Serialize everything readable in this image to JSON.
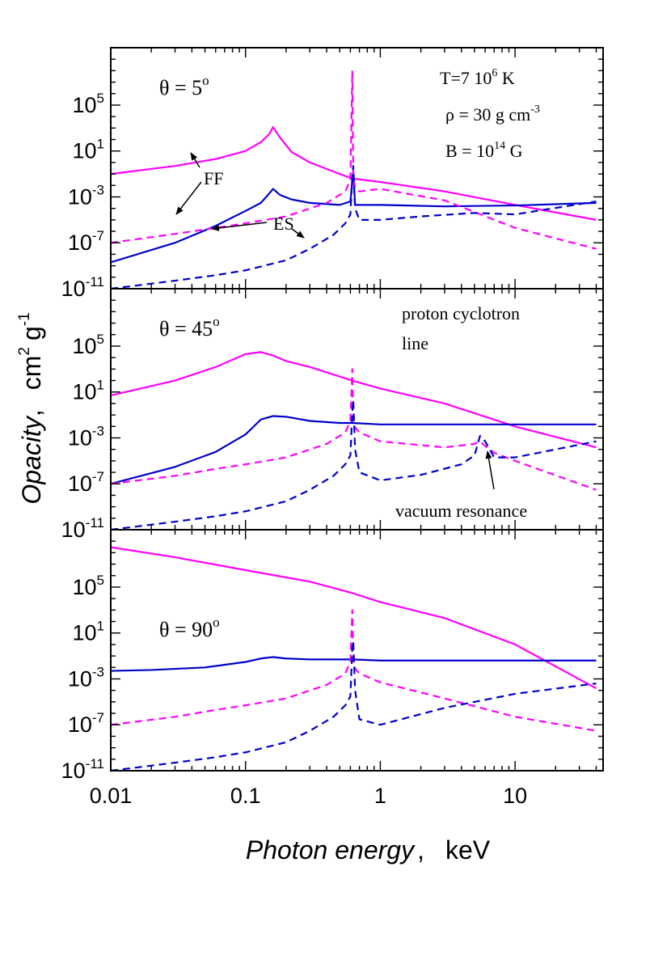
{
  "figure": {
    "y_axis": {
      "italic": "Opacity",
      "sep": ",",
      "unit_cm": "cm",
      "unit_cm_exp": "2",
      "unit_g": "g",
      "unit_g_exp": "-1"
    },
    "x_axis": {
      "italic": "Photon energy",
      "sep": ",",
      "unit": "keV"
    },
    "x_tick_labels": [
      "0.01",
      "0.1",
      "1",
      "10"
    ],
    "y_tick_base": "10",
    "y_tick_exponents": [
      "5",
      "1",
      "-3",
      "-7",
      "-11"
    ],
    "params": {
      "T_pre": "T=7 10",
      "T_exp": "6",
      "T_post": " K",
      "rho_pre": "ρ = 30 g cm",
      "rho_exp": "-3",
      "B_pre": "B = 10",
      "B_exp": "14",
      "B_post": " G"
    },
    "labels": {
      "ff": "FF",
      "es": "ES",
      "cyclotron_1": "proton cyclotron",
      "cyclotron_2": "line",
      "vacuum": "vacuum resonance"
    },
    "colors": {
      "magenta": "#ff00ff",
      "blue": "#0000cc"
    }
  },
  "chart_data": [
    {
      "type": "line",
      "panel": "top",
      "theta_text": "θ = 5",
      "theta_sup": "o",
      "x_scale": "log",
      "y_scale": "log",
      "xlim": [
        0.01,
        45
      ],
      "ylim": [
        1e-11,
        10000000000.0
      ],
      "xlabel": "Photon energy, keV",
      "ylabel": "Opacity, cm2 g-1",
      "series": [
        {
          "name": "magenta solid",
          "color": "magenta",
          "dash": false,
          "x": [
            0.01,
            0.03,
            0.06,
            0.1,
            0.13,
            0.15,
            0.16,
            0.18,
            0.22,
            0.3,
            0.5,
            0.62,
            1,
            3,
            10,
            40
          ],
          "y": [
            0.1,
            0.5,
            2,
            10,
            60,
            300,
            1200,
            150,
            8,
            1,
            0.1,
            0.04,
            0.02,
            0.003,
            0.0002,
            1e-05
          ]
        },
        {
          "name": "blue solid",
          "color": "blue",
          "dash": false,
          "x": [
            0.01,
            0.03,
            0.06,
            0.1,
            0.13,
            0.15,
            0.16,
            0.18,
            0.22,
            0.3,
            0.5,
            0.6,
            0.62,
            0.63,
            0.65,
            0.7,
            1,
            3,
            10,
            40
          ],
          "y": [
            2e-09,
            1e-07,
            3e-06,
            6e-05,
            0.0003,
            0.002,
            0.005,
            0.0015,
            0.0006,
            0.0003,
            0.0002,
            0.0004,
            0.03,
            0.2,
            0.0002,
            0.0002,
            0.0002,
            0.00015,
            0.00018,
            0.0003
          ]
        },
        {
          "name": "magenta dashed",
          "color": "magenta",
          "dash": true,
          "x": [
            0.01,
            0.03,
            0.06,
            0.1,
            0.2,
            0.4,
            0.55,
            0.6,
            0.62,
            0.63,
            0.65,
            0.7,
            1,
            3,
            10,
            40
          ],
          "y": [
            1e-07,
            6e-07,
            2e-06,
            5e-06,
            2e-05,
            0.0003,
            0.003,
            0.03,
            100000000.0,
            0.05,
            0.008,
            0.003,
            0.005,
            0.0005,
            2e-06,
            3e-08
          ]
        },
        {
          "name": "blue dashed",
          "color": "blue",
          "dash": true,
          "x": [
            0.01,
            0.03,
            0.06,
            0.1,
            0.2,
            0.3,
            0.45,
            0.55,
            0.6,
            0.62,
            0.63,
            0.65,
            0.7,
            1,
            2,
            5,
            10,
            40
          ],
          "y": [
            1e-11,
            5e-11,
            1.5e-10,
            4e-10,
            3e-09,
            3e-08,
            5e-07,
            5e-06,
            3e-05,
            0.05,
            0.5,
            0.0001,
            1e-05,
            1e-05,
            2e-05,
            4e-05,
            3e-05,
            0.0004
          ]
        }
      ]
    },
    {
      "type": "line",
      "panel": "middle",
      "theta_text": "θ = 45",
      "theta_sup": "o",
      "x_scale": "log",
      "y_scale": "log",
      "xlim": [
        0.01,
        45
      ],
      "ylim": [
        1e-11,
        10000000000.0
      ],
      "series": [
        {
          "name": "magenta solid",
          "color": "magenta",
          "dash": false,
          "x": [
            0.01,
            0.03,
            0.06,
            0.1,
            0.13,
            0.16,
            0.2,
            0.3,
            0.62,
            1,
            3,
            10,
            40
          ],
          "y": [
            5,
            100,
            1500,
            20000,
            30000,
            15000,
            5000,
            1500,
            100,
            20,
            1,
            0.01,
            0.00015
          ]
        },
        {
          "name": "blue solid",
          "color": "blue",
          "dash": false,
          "x": [
            0.01,
            0.03,
            0.06,
            0.1,
            0.13,
            0.16,
            0.2,
            0.3,
            0.5,
            0.62,
            1,
            3,
            10,
            40
          ],
          "y": [
            1e-07,
            3e-06,
            6e-05,
            0.002,
            0.04,
            0.08,
            0.07,
            0.03,
            0.02,
            0.02,
            0.015,
            0.015,
            0.015,
            0.015
          ]
        },
        {
          "name": "magenta dashed",
          "color": "magenta",
          "dash": true,
          "x": [
            0.01,
            0.03,
            0.06,
            0.1,
            0.2,
            0.4,
            0.55,
            0.6,
            0.62,
            0.63,
            0.65,
            0.7,
            1,
            3,
            5,
            5.5,
            6,
            7,
            10,
            40
          ],
          "y": [
            1e-07,
            5e-07,
            2e-06,
            5e-06,
            2e-05,
            0.0003,
            0.003,
            0.03,
            1000,
            0.05,
            0.008,
            0.003,
            0.0005,
            0.00015,
            0.0003,
            0.0005,
            0.0002,
            5e-05,
            1e-05,
            3e-08
          ]
        },
        {
          "name": "blue dashed",
          "color": "blue",
          "dash": true,
          "x": [
            0.01,
            0.03,
            0.06,
            0.1,
            0.2,
            0.3,
            0.45,
            0.55,
            0.6,
            0.62,
            0.63,
            0.65,
            0.7,
            1,
            2,
            4,
            5,
            5.5,
            6,
            7,
            10,
            40
          ],
          "y": [
            1e-11,
            5e-11,
            1.5e-10,
            4e-10,
            3e-09,
            3e-08,
            5e-07,
            5e-06,
            3e-05,
            0.2,
            2,
            0.0001,
            1e-06,
            2e-07,
            6e-07,
            5e-06,
            3e-05,
            0.0015,
            0.0005,
            2e-05,
            2e-05,
            0.0005
          ]
        }
      ]
    },
    {
      "type": "line",
      "panel": "bottom",
      "theta_text": "θ = 90",
      "theta_sup": "o",
      "x_scale": "log",
      "y_scale": "log",
      "xlim": [
        0.01,
        45
      ],
      "ylim": [
        1e-11,
        10000000000.0
      ],
      "series": [
        {
          "name": "magenta solid",
          "color": "magenta",
          "dash": false,
          "x": [
            0.01,
            0.03,
            0.1,
            0.3,
            0.62,
            1,
            3,
            10,
            40
          ],
          "y": [
            300000000.0,
            40000000.0,
            3000000.0,
            300000,
            30000,
            5000,
            200,
            1,
            0.00015
          ]
        },
        {
          "name": "blue solid",
          "color": "blue",
          "dash": false,
          "x": [
            0.01,
            0.02,
            0.05,
            0.1,
            0.13,
            0.16,
            0.2,
            0.3,
            0.62,
            1,
            3,
            10,
            40
          ],
          "y": [
            0.005,
            0.006,
            0.01,
            0.03,
            0.06,
            0.08,
            0.06,
            0.05,
            0.05,
            0.04,
            0.04,
            0.04,
            0.04
          ]
        },
        {
          "name": "magenta dashed",
          "color": "magenta",
          "dash": true,
          "x": [
            0.01,
            0.03,
            0.06,
            0.1,
            0.2,
            0.4,
            0.55,
            0.6,
            0.62,
            0.63,
            0.65,
            0.7,
            1,
            3,
            10,
            40
          ],
          "y": [
            1e-07,
            5e-07,
            2e-06,
            5e-06,
            2e-05,
            0.0003,
            0.003,
            0.03,
            1000,
            0.05,
            0.008,
            0.003,
            0.0005,
            2e-05,
            5e-07,
            3e-08
          ]
        },
        {
          "name": "blue dashed",
          "color": "blue",
          "dash": true,
          "x": [
            0.01,
            0.03,
            0.06,
            0.1,
            0.2,
            0.3,
            0.45,
            0.55,
            0.6,
            0.62,
            0.63,
            0.65,
            0.7,
            1,
            3,
            10,
            40
          ],
          "y": [
            1e-11,
            5e-11,
            1.5e-10,
            4e-10,
            3e-09,
            3e-08,
            5e-07,
            5e-06,
            3e-05,
            0.5,
            2,
            0.0001,
            3e-07,
            1e-07,
            3e-06,
            5e-05,
            0.0004
          ]
        }
      ]
    }
  ]
}
